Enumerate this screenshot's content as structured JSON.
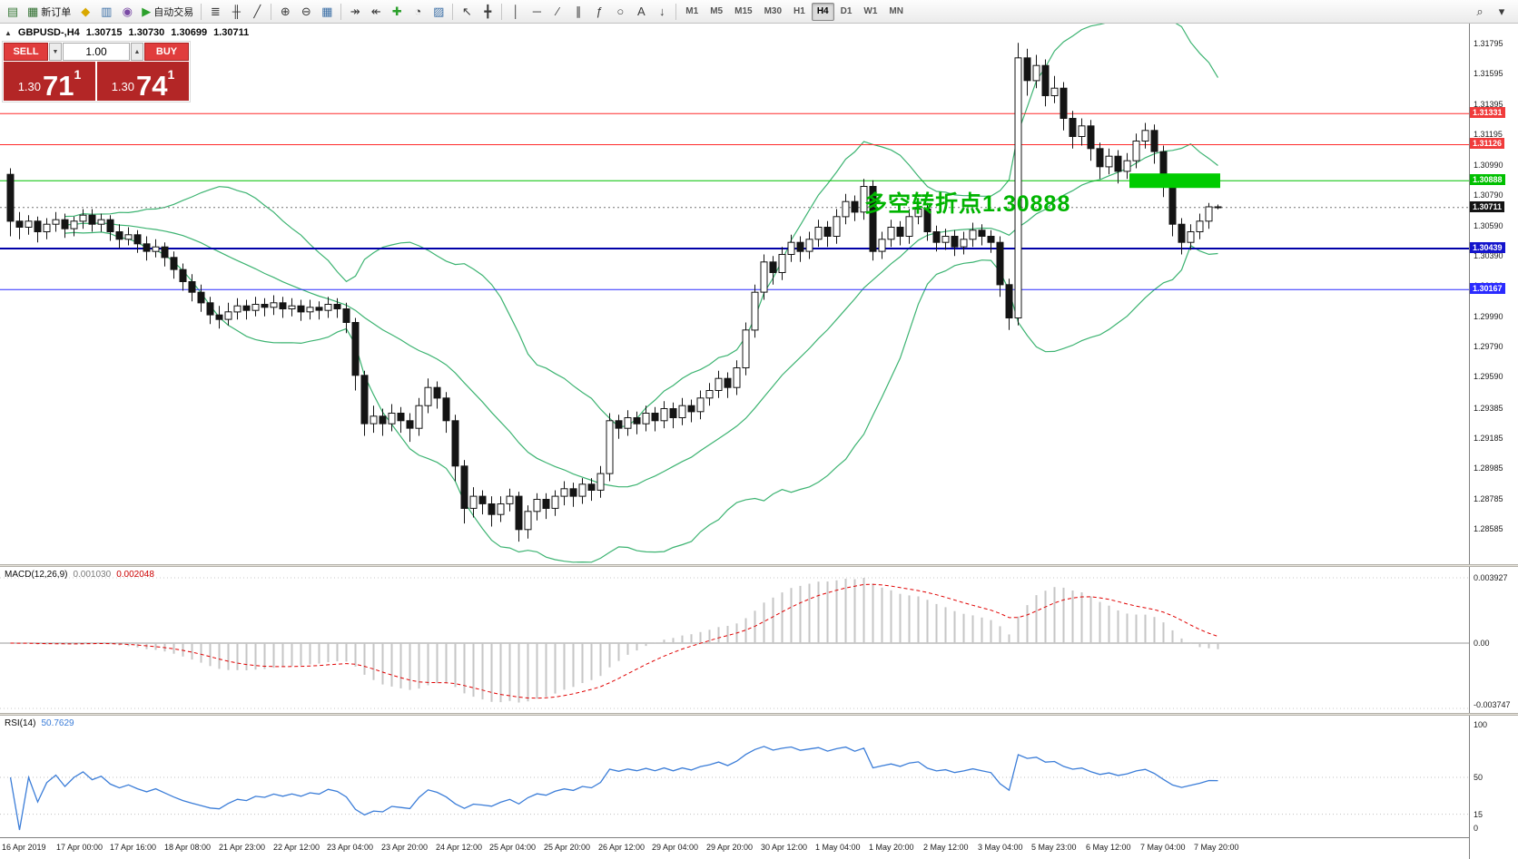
{
  "colors": {
    "bollinger": "#3cb371",
    "candle_up": "#ffffff",
    "candle_down": "#141414",
    "wick": "#141414",
    "macd_hist": "#c6c6c6",
    "macd_signal": "#e00000",
    "rsi_line": "#3b7dd8",
    "current_price_line": "#777777",
    "highlight_green": "#00cc00",
    "annotation_green": "#00b400",
    "trade_button_red": "#e03c3c",
    "trade_tile_red": "#b32626"
  },
  "toolbar": {
    "groups": [
      [
        {
          "name": "new-chart",
          "glyph": "▤",
          "color": "#3a7a3a"
        },
        {
          "name": "new-order",
          "glyph": "▦",
          "color": "#2e6e2e",
          "label": "新订单"
        },
        {
          "name": "market-watch",
          "glyph": "◆",
          "color": "#d9a800"
        },
        {
          "name": "data-window",
          "glyph": "▥",
          "color": "#3a6ea5"
        },
        {
          "name": "navigator",
          "glyph": "◉",
          "color": "#7a4aa5"
        },
        {
          "name": "autotrading",
          "glyph": "▶",
          "color": "#2ca02c",
          "label": "自动交易"
        }
      ],
      [
        {
          "name": "bar-chart",
          "glyph": "≣",
          "color": "#3a3a3a"
        },
        {
          "name": "candlestick-chart",
          "glyph": "╫",
          "color": "#3a3a3a"
        },
        {
          "name": "line-chart",
          "glyph": "╱",
          "color": "#3a3a3a"
        }
      ],
      [
        {
          "name": "zoom-in",
          "glyph": "⊕",
          "color": "#3a3a3a"
        },
        {
          "name": "zoom-out",
          "glyph": "⊖",
          "color": "#3a3a3a"
        },
        {
          "name": "tile-windows",
          "glyph": "▦",
          "color": "#3a6ea5"
        }
      ],
      [
        {
          "name": "auto-scroll",
          "glyph": "↠",
          "color": "#3a3a3a"
        },
        {
          "name": "chart-shift",
          "glyph": "↞",
          "color": "#3a3a3a"
        },
        {
          "name": "indicators",
          "glyph": "✚",
          "color": "#2ca02c"
        },
        {
          "name": "periods",
          "glyph": "◔",
          "color": "#3a3a3a"
        },
        {
          "name": "templates",
          "glyph": "▨",
          "color": "#3a6ea5"
        }
      ],
      [
        {
          "name": "cursor",
          "glyph": "↖",
          "color": "#3a3a3a"
        },
        {
          "name": "crosshair",
          "glyph": "╋",
          "color": "#3a3a3a"
        }
      ],
      [
        {
          "name": "vertical-line",
          "glyph": "│",
          "color": "#3a3a3a"
        },
        {
          "name": "horizontal-line",
          "glyph": "─",
          "color": "#3a3a3a"
        },
        {
          "name": "trendline",
          "glyph": "∕",
          "color": "#3a3a3a"
        },
        {
          "name": "equidistant-channel",
          "glyph": "∥",
          "color": "#3a3a3a"
        },
        {
          "name": "fibonacci",
          "glyph": "ƒ",
          "color": "#3a3a3a"
        },
        {
          "name": "shapes",
          "glyph": "○",
          "color": "#3a3a3a"
        },
        {
          "name": "text-label",
          "glyph": "A",
          "color": "#3a3a3a"
        },
        {
          "name": "arrows",
          "glyph": "↓",
          "color": "#3a3a3a"
        }
      ]
    ],
    "timeframes": [
      "M1",
      "M5",
      "M15",
      "M30",
      "H1",
      "H4",
      "D1",
      "W1",
      "MN"
    ],
    "active_timeframe": "H4",
    "right_items": [
      {
        "name": "search",
        "glyph": "⌕",
        "color": "#3a3a3a"
      },
      {
        "name": "quick-access",
        "glyph": "▾",
        "color": "#3a3a3a"
      }
    ]
  },
  "chart": {
    "header": {
      "toggle_glyph": "▲",
      "symbol": "GBPUSD-,H4",
      "open": "1.30715",
      "high": "1.30730",
      "low": "1.30699",
      "close": "1.30711"
    },
    "trade_panel": {
      "sell_label": "SELL",
      "buy_label": "BUY",
      "volume": "1.00",
      "dropdown_glyph": "▼",
      "stepper_glyph": "▲",
      "sell_price": {
        "base": "1.30",
        "pips": "71",
        "frac": "1"
      },
      "buy_price": {
        "base": "1.30",
        "pips": "74",
        "frac": "1"
      }
    },
    "annotation": "多空转折点1.30888",
    "price_axis": {
      "labels": [
        "1.31795",
        "1.31595",
        "1.31395",
        "1.31195",
        "1.30990",
        "1.30790",
        "1.30590",
        "1.30390",
        "1.30190",
        "1.29990",
        "1.29790",
        "1.29590",
        "1.29385",
        "1.29185",
        "1.28985",
        "1.28785",
        "1.28585"
      ]
    },
    "levels": [
      {
        "price": 1.31331,
        "label": "1.31331",
        "color": "#ff2a2a",
        "badge": "#f03b3b",
        "width": 1
      },
      {
        "price": 1.31126,
        "label": "1.31126",
        "color": "#ff2a2a",
        "badge": "#f03b3b",
        "width": 1
      },
      {
        "price": 1.30888,
        "label": "1.30888",
        "color": "#00c000",
        "badge": "#00c000",
        "width": 1
      },
      {
        "price": 1.30439,
        "label": "1.30439",
        "color": "#0000a8",
        "badge": "#1414cc",
        "width": 2
      },
      {
        "price": 1.30167,
        "label": "1.30167",
        "color": "#2a2aff",
        "badge": "#2a2aff",
        "width": 1
      }
    ],
    "current_price": {
      "price": 1.30711,
      "label": "1.30711",
      "badge": "#141414"
    },
    "highlight_box": {
      "price": 1.30888,
      "from_candle": 124,
      "to_candle": 133
    },
    "bollinger": {
      "period": 20,
      "deviation": 2
    },
    "candles": [
      [
        1.3093,
        1.3097,
        1.3052,
        1.3062
      ],
      [
        1.3062,
        1.3068,
        1.305,
        1.3058
      ],
      [
        1.3058,
        1.3066,
        1.3053,
        1.3062
      ],
      [
        1.3062,
        1.3065,
        1.3048,
        1.3055
      ],
      [
        1.3055,
        1.3064,
        1.305,
        1.306
      ],
      [
        1.306,
        1.3068,
        1.3055,
        1.3063
      ],
      [
        1.3063,
        1.3067,
        1.3051,
        1.3057
      ],
      [
        1.3057,
        1.3065,
        1.3052,
        1.3062
      ],
      [
        1.3062,
        1.307,
        1.3057,
        1.3066
      ],
      [
        1.3066,
        1.307,
        1.3055,
        1.306
      ],
      [
        1.306,
        1.3067,
        1.3055,
        1.3063
      ],
      [
        1.3063,
        1.3066,
        1.3049,
        1.3055
      ],
      [
        1.3055,
        1.306,
        1.3044,
        1.305
      ],
      [
        1.305,
        1.3058,
        1.3046,
        1.3053
      ],
      [
        1.3053,
        1.3056,
        1.3041,
        1.3047
      ],
      [
        1.3047,
        1.3052,
        1.3036,
        1.3042
      ],
      [
        1.3042,
        1.305,
        1.3038,
        1.3045
      ],
      [
        1.3045,
        1.3048,
        1.3032,
        1.3038
      ],
      [
        1.3038,
        1.3042,
        1.3024,
        1.303
      ],
      [
        1.303,
        1.3034,
        1.3016,
        1.3022
      ],
      [
        1.3022,
        1.3027,
        1.3009,
        1.3015
      ],
      [
        1.3015,
        1.302,
        1.3002,
        1.3008
      ],
      [
        1.3008,
        1.3012,
        1.2994,
        1.3
      ],
      [
        1.3,
        1.3006,
        1.2991,
        1.2997
      ],
      [
        1.2997,
        1.3008,
        1.2993,
        1.3002
      ],
      [
        1.3002,
        1.3011,
        1.2997,
        1.3006
      ],
      [
        1.3006,
        1.301,
        1.2997,
        1.3003
      ],
      [
        1.3003,
        1.3012,
        1.2999,
        1.3007
      ],
      [
        1.3007,
        1.3011,
        1.2999,
        1.3005
      ],
      [
        1.3005,
        1.3013,
        1.3,
        1.3008
      ],
      [
        1.3008,
        1.3012,
        1.2998,
        1.3004
      ],
      [
        1.3004,
        1.3011,
        1.2999,
        1.3006
      ],
      [
        1.3006,
        1.301,
        1.2996,
        1.3002
      ],
      [
        1.3002,
        1.301,
        1.2997,
        1.3005
      ],
      [
        1.3005,
        1.3009,
        1.2997,
        1.3003
      ],
      [
        1.3003,
        1.3012,
        1.2998,
        1.3007
      ],
      [
        1.3007,
        1.3011,
        1.2998,
        1.3004
      ],
      [
        1.3004,
        1.3008,
        1.2988,
        1.2995
      ],
      [
        1.2995,
        1.2998,
        1.295,
        1.296
      ],
      [
        1.296,
        1.2963,
        1.292,
        1.2928
      ],
      [
        1.2928,
        1.294,
        1.2922,
        1.2933
      ],
      [
        1.2933,
        1.2938,
        1.292,
        1.2928
      ],
      [
        1.2928,
        1.2941,
        1.2923,
        1.2935
      ],
      [
        1.2935,
        1.2939,
        1.2922,
        1.293
      ],
      [
        1.293,
        1.2935,
        1.2916,
        1.2925
      ],
      [
        1.2925,
        1.2945,
        1.292,
        1.294
      ],
      [
        1.294,
        1.2958,
        1.2935,
        1.2952
      ],
      [
        1.2952,
        1.2956,
        1.2938,
        1.2945
      ],
      [
        1.2945,
        1.2949,
        1.2922,
        1.293
      ],
      [
        1.293,
        1.2934,
        1.289,
        1.29
      ],
      [
        1.29,
        1.2904,
        1.2862,
        1.2872
      ],
      [
        1.2872,
        1.2886,
        1.2866,
        1.288
      ],
      [
        1.288,
        1.2884,
        1.2868,
        1.2875
      ],
      [
        1.2875,
        1.288,
        1.286,
        1.2868
      ],
      [
        1.2868,
        1.288,
        1.2863,
        1.2875
      ],
      [
        1.2875,
        1.2885,
        1.287,
        1.288
      ],
      [
        1.288,
        1.2883,
        1.285,
        1.2858
      ],
      [
        1.2858,
        1.2874,
        1.2852,
        1.287
      ],
      [
        1.287,
        1.2882,
        1.2864,
        1.2878
      ],
      [
        1.2878,
        1.2882,
        1.2865,
        1.2872
      ],
      [
        1.2872,
        1.2884,
        1.2867,
        1.288
      ],
      [
        1.288,
        1.289,
        1.2874,
        1.2885
      ],
      [
        1.2885,
        1.2889,
        1.2873,
        1.288
      ],
      [
        1.288,
        1.2892,
        1.2875,
        1.2888
      ],
      [
        1.2888,
        1.2892,
        1.2877,
        1.2884
      ],
      [
        1.2884,
        1.29,
        1.2879,
        1.2895
      ],
      [
        1.2895,
        1.2935,
        1.289,
        1.293
      ],
      [
        1.293,
        1.2934,
        1.2918,
        1.2925
      ],
      [
        1.2925,
        1.2937,
        1.292,
        1.2932
      ],
      [
        1.2932,
        1.2936,
        1.2921,
        1.2928
      ],
      [
        1.2928,
        1.294,
        1.2923,
        1.2935
      ],
      [
        1.2935,
        1.2939,
        1.2923,
        1.293
      ],
      [
        1.293,
        1.2943,
        1.2925,
        1.2938
      ],
      [
        1.2938,
        1.2942,
        1.2925,
        1.2932
      ],
      [
        1.2932,
        1.2945,
        1.2927,
        1.294
      ],
      [
        1.294,
        1.2944,
        1.2929,
        1.2936
      ],
      [
        1.2936,
        1.295,
        1.2931,
        1.2945
      ],
      [
        1.2945,
        1.2955,
        1.294,
        1.295
      ],
      [
        1.295,
        1.2963,
        1.2945,
        1.2958
      ],
      [
        1.2958,
        1.2962,
        1.2945,
        1.2952
      ],
      [
        1.2952,
        1.297,
        1.2947,
        1.2965
      ],
      [
        1.2965,
        1.2995,
        1.296,
        1.299
      ],
      [
        1.299,
        1.302,
        1.2985,
        1.3015
      ],
      [
        1.3015,
        1.304,
        1.301,
        1.3035
      ],
      [
        1.3035,
        1.3039,
        1.302,
        1.3028
      ],
      [
        1.3028,
        1.3045,
        1.3023,
        1.304
      ],
      [
        1.304,
        1.3053,
        1.3035,
        1.3048
      ],
      [
        1.3048,
        1.3052,
        1.3035,
        1.3042
      ],
      [
        1.3042,
        1.3055,
        1.3037,
        1.305
      ],
      [
        1.305,
        1.3063,
        1.3045,
        1.3058
      ],
      [
        1.3058,
        1.3062,
        1.3045,
        1.3052
      ],
      [
        1.3052,
        1.307,
        1.3047,
        1.3065
      ],
      [
        1.3065,
        1.308,
        1.306,
        1.3075
      ],
      [
        1.3075,
        1.3079,
        1.3062,
        1.3068
      ],
      [
        1.3068,
        1.309,
        1.3063,
        1.3085
      ],
      [
        1.3085,
        1.3089,
        1.3036,
        1.3042
      ],
      [
        1.3042,
        1.3055,
        1.3037,
        1.305
      ],
      [
        1.305,
        1.3063,
        1.3045,
        1.3058
      ],
      [
        1.3058,
        1.3062,
        1.3046,
        1.3052
      ],
      [
        1.3052,
        1.307,
        1.3047,
        1.3065
      ],
      [
        1.3065,
        1.3075,
        1.306,
        1.307
      ],
      [
        1.307,
        1.3074,
        1.3049,
        1.3055
      ],
      [
        1.3055,
        1.3059,
        1.3042,
        1.3048
      ],
      [
        1.3048,
        1.3057,
        1.3043,
        1.3052
      ],
      [
        1.3052,
        1.3056,
        1.3039,
        1.3045
      ],
      [
        1.3045,
        1.3055,
        1.304,
        1.305
      ],
      [
        1.305,
        1.3061,
        1.3045,
        1.3056
      ],
      [
        1.3056,
        1.306,
        1.3046,
        1.3052
      ],
      [
        1.3052,
        1.3056,
        1.3041,
        1.3048
      ],
      [
        1.3048,
        1.3052,
        1.3012,
        1.302
      ],
      [
        1.302,
        1.3024,
        1.299,
        1.2998
      ],
      [
        1.2998,
        1.318,
        1.2993,
        1.317
      ],
      [
        1.317,
        1.3176,
        1.3145,
        1.3155
      ],
      [
        1.3155,
        1.3172,
        1.315,
        1.3165
      ],
      [
        1.3165,
        1.3169,
        1.3138,
        1.3145
      ],
      [
        1.3145,
        1.3158,
        1.314,
        1.315
      ],
      [
        1.315,
        1.3154,
        1.3122,
        1.313
      ],
      [
        1.313,
        1.3135,
        1.311,
        1.3118
      ],
      [
        1.3118,
        1.313,
        1.3112,
        1.3125
      ],
      [
        1.3125,
        1.3129,
        1.3102,
        1.311
      ],
      [
        1.311,
        1.3114,
        1.309,
        1.3098
      ],
      [
        1.3098,
        1.311,
        1.3093,
        1.3105
      ],
      [
        1.3105,
        1.3109,
        1.3087,
        1.3095
      ],
      [
        1.3095,
        1.3107,
        1.309,
        1.3102
      ],
      [
        1.3102,
        1.312,
        1.3097,
        1.3115
      ],
      [
        1.3115,
        1.3127,
        1.311,
        1.3122
      ],
      [
        1.3122,
        1.3126,
        1.31,
        1.3108
      ],
      [
        1.3108,
        1.3112,
        1.3078,
        1.3085
      ],
      [
        1.3085,
        1.3089,
        1.3052,
        1.306
      ],
      [
        1.306,
        1.3064,
        1.304,
        1.3048
      ],
      [
        1.3048,
        1.306,
        1.3043,
        1.3055
      ],
      [
        1.3055,
        1.3067,
        1.305,
        1.3062
      ],
      [
        1.3062,
        1.3074,
        1.3057,
        1.30715
      ],
      [
        1.30715,
        1.3073,
        1.30699,
        1.30711
      ]
    ]
  },
  "macd": {
    "title": "MACD(12,26,9)",
    "value_main": "0.001030",
    "value_signal": "0.002048",
    "axis": [
      "0.003927",
      "0.00",
      "-0.003747"
    ],
    "params": {
      "fast": 12,
      "slow": 26,
      "signal": 9
    }
  },
  "rsi": {
    "title": "RSI(14)",
    "value": "50.7629",
    "period": 14,
    "axis": [
      "100",
      "50",
      "15",
      "0"
    ],
    "levels": [
      50,
      15
    ]
  },
  "time_axis": {
    "labels": [
      "16 Apr 2019",
      "17 Apr 00:00",
      "17 Apr 16:00",
      "18 Apr 08:00",
      "21 Apr 23:00",
      "22 Apr 12:00",
      "23 Apr 04:00",
      "23 Apr 20:00",
      "24 Apr 12:00",
      "25 Apr 04:00",
      "25 Apr 20:00",
      "26 Apr 12:00",
      "29 Apr 04:00",
      "29 Apr 20:00",
      "30 Apr 12:00",
      "1 May 04:00",
      "1 May 20:00",
      "2 May 12:00",
      "3 May 04:00",
      "5 May 23:00",
      "6 May 12:00",
      "7 May 04:00",
      "7 May 20:00"
    ]
  }
}
